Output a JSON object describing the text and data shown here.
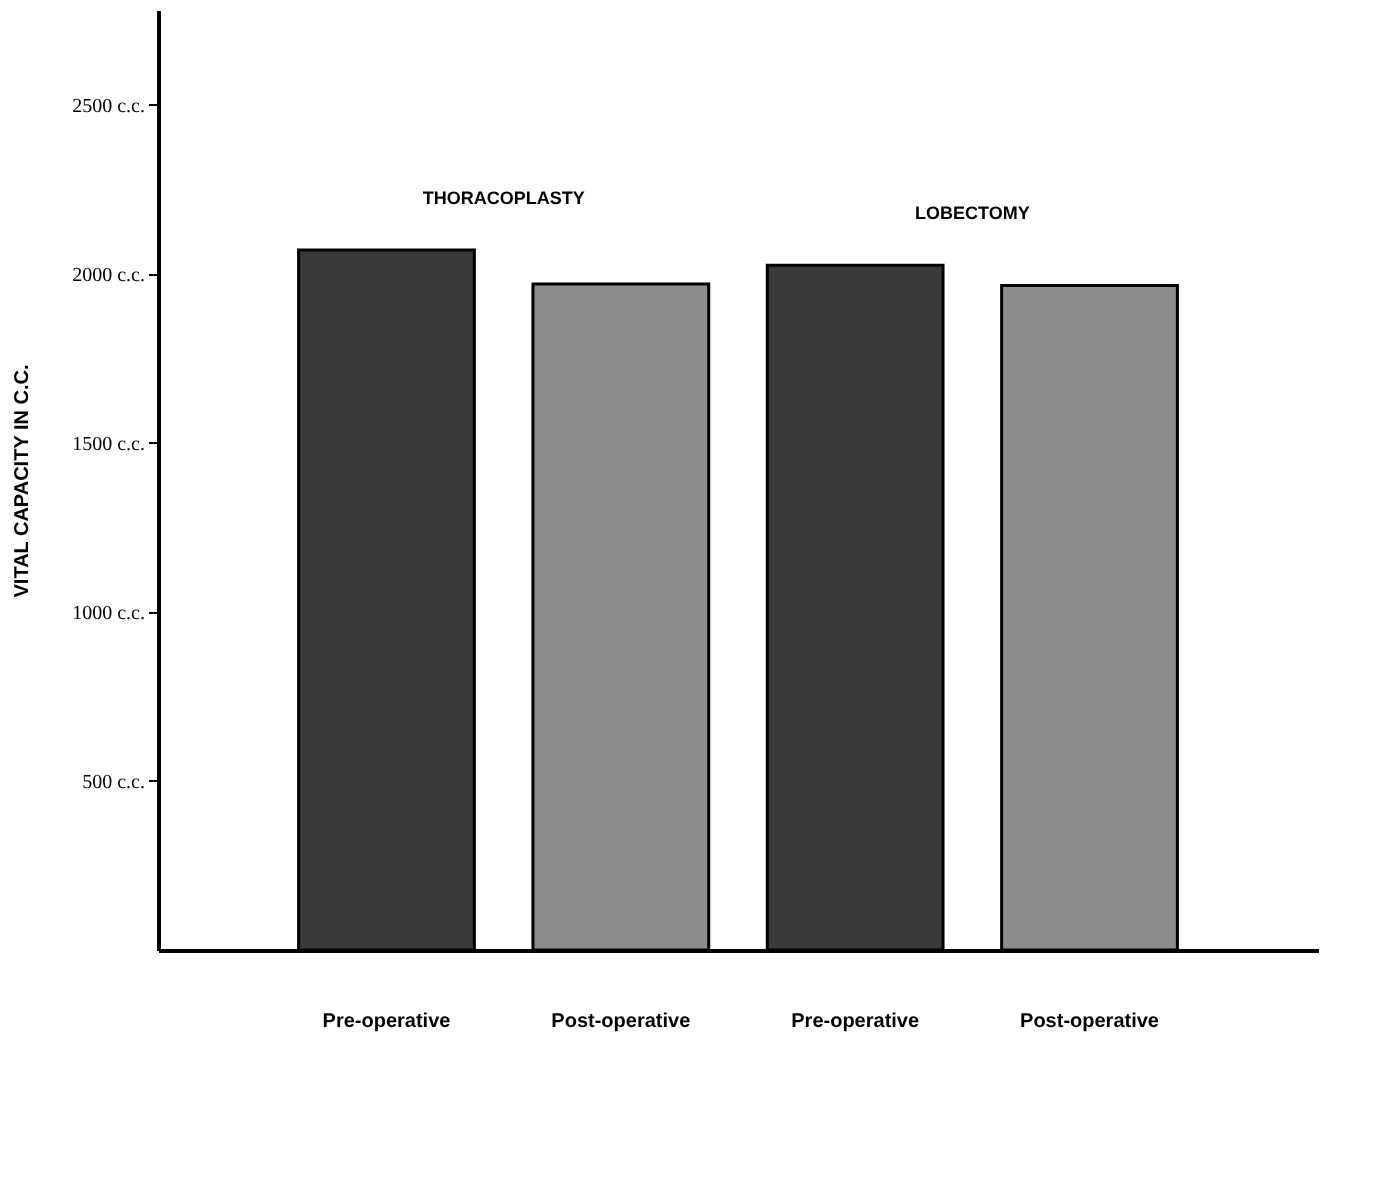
{
  "chart_data": {
    "type": "bar",
    "ylabel": "VITAL CAPACITY IN C.C.",
    "categories": [
      "Pre-operative",
      "Post-operative",
      "Pre-operative",
      "Post-operative"
    ],
    "values": [
      2070,
      1970,
      2025,
      1965
    ],
    "colors": [
      "#3a3a3a",
      "#8c8c8c",
      "#3a3a3a",
      "#8c8c8c"
    ],
    "ylim": [
      0,
      2780
    ],
    "yticks": [
      {
        "value": 500,
        "label": "500 c.c."
      },
      {
        "value": 1000,
        "label": "1000 c.c."
      },
      {
        "value": 1500,
        "label": "1500 c.c."
      },
      {
        "value": 2000,
        "label": "2000 c.c."
      },
      {
        "value": 2500,
        "label": "2500 c.c."
      }
    ],
    "annotations": [
      "THORACOPLASTY",
      "LOBECTOMY"
    ],
    "grid": false,
    "legend": false
  }
}
